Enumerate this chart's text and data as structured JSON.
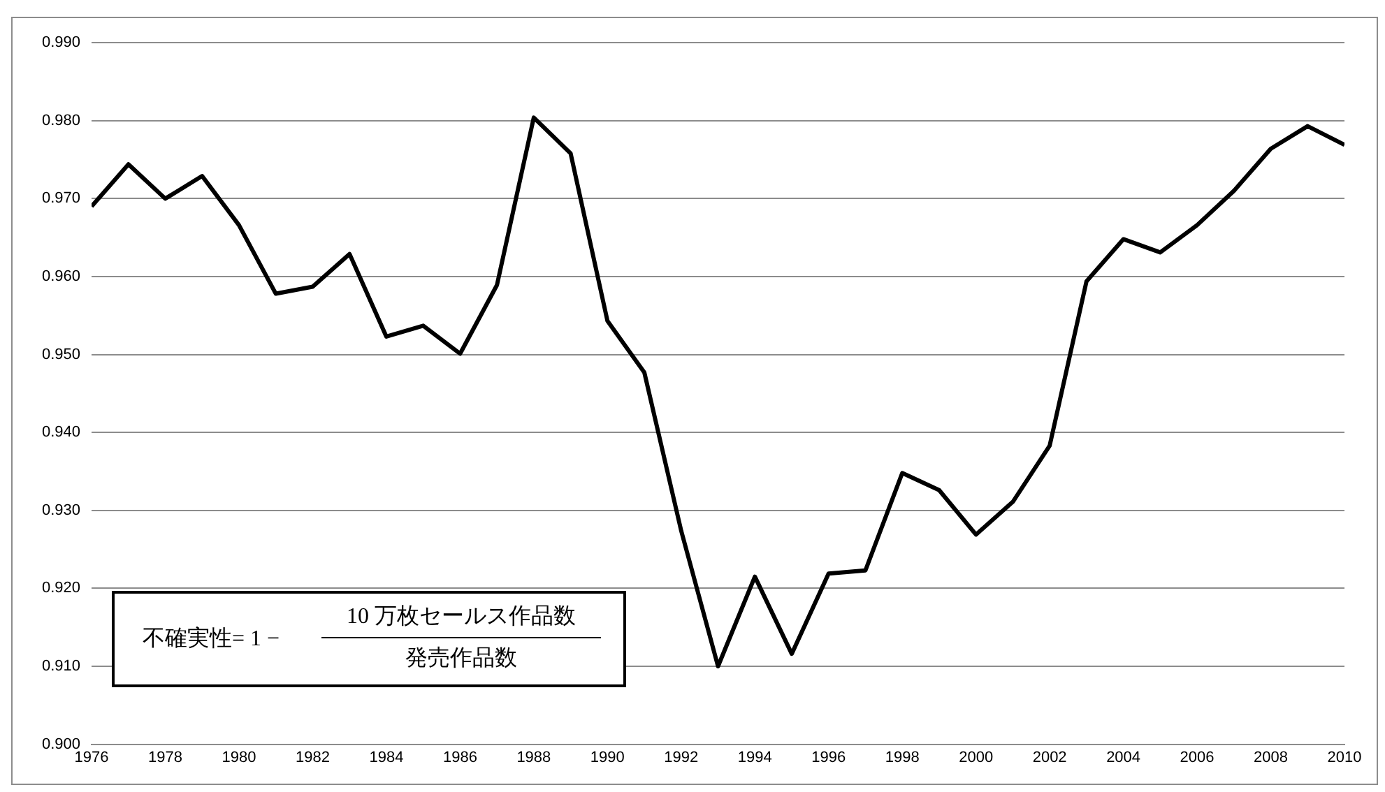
{
  "chart_data": {
    "type": "line",
    "x": [
      1976,
      1977,
      1978,
      1979,
      1980,
      1981,
      1982,
      1983,
      1984,
      1985,
      1986,
      1987,
      1988,
      1989,
      1990,
      1991,
      1992,
      1993,
      1994,
      1995,
      1996,
      1997,
      1998,
      1999,
      2000,
      2001,
      2002,
      2003,
      2004,
      2005,
      2006,
      2007,
      2008,
      2009,
      2010
    ],
    "series": [
      {
        "color": "#000000",
        "values": [
          0.969,
          0.9744,
          0.97,
          0.9729,
          0.9666,
          0.9578,
          0.9587,
          0.9629,
          0.9523,
          0.9537,
          0.9501,
          0.9589,
          0.9804,
          0.9758,
          0.9543,
          0.9477,
          0.9274,
          0.91,
          0.9215,
          0.9116,
          0.9219,
          0.9223,
          0.9348,
          0.9326,
          0.9269,
          0.9311,
          0.9383,
          0.9594,
          0.9648,
          0.9631,
          0.9666,
          0.971,
          0.9764,
          0.9793,
          0.9769
        ]
      }
    ],
    "xlim": [
      1976,
      2010
    ],
    "xticks": [
      1976,
      1978,
      1980,
      1982,
      1984,
      1986,
      1988,
      1990,
      1992,
      1994,
      1996,
      1998,
      2000,
      2002,
      2004,
      2006,
      2008,
      2010
    ],
    "ylim": [
      0.9,
      0.99
    ],
    "yticks": [
      {
        "value": 0.9,
        "label": "0.900"
      },
      {
        "value": 0.91,
        "label": "0.910"
      },
      {
        "value": 0.92,
        "label": "0.920"
      },
      {
        "value": 0.93,
        "label": "0.930"
      },
      {
        "value": 0.94,
        "label": "0.940"
      },
      {
        "value": 0.95,
        "label": "0.950"
      },
      {
        "value": 0.96,
        "label": "0.960"
      },
      {
        "value": 0.97,
        "label": "0.970"
      },
      {
        "value": 0.98,
        "label": "0.980"
      },
      {
        "value": 0.99,
        "label": "0.990"
      }
    ],
    "grid": "y",
    "marker": "none",
    "line_style": "solid",
    "legend": false,
    "annotations": [
      "不確実性= 1 −",
      "10 万枚セールス作品数",
      "発売作品数"
    ]
  }
}
